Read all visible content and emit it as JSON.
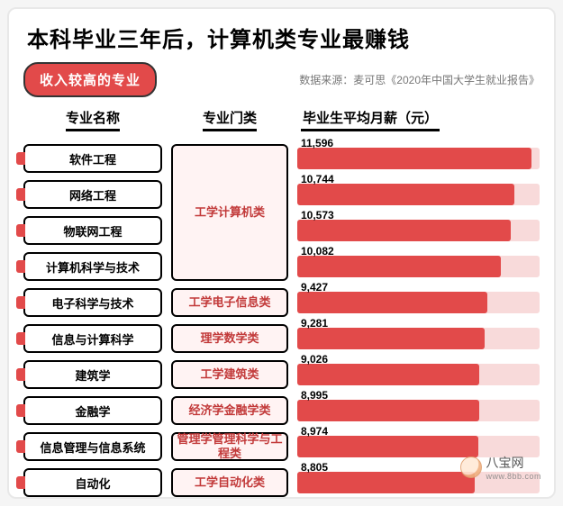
{
  "title": "本科毕业三年后，计算机类专业最赚钱",
  "badge": "收入较高的专业",
  "source_prefix": "数据来源：",
  "source": "麦可思《2020年中国大学生就业报告》",
  "columns": {
    "major": "专业名称",
    "category": "专业门类",
    "salary": "毕业生平均月薪（元）"
  },
  "chart": {
    "type": "bar",
    "bar_fill_color": "#e24a4a",
    "bar_track_color": "#f8dada",
    "max_value": 12000,
    "track_ratio": 1.0,
    "rows": [
      {
        "major": "软件工程",
        "category": "工学计算机类",
        "salary": 11596,
        "cat_span": 4
      },
      {
        "major": "网络工程",
        "category": "",
        "salary": 10744
      },
      {
        "major": "物联网工程",
        "category": "",
        "salary": 10573
      },
      {
        "major": "计算机科学与技术",
        "category": "",
        "salary": 10082
      },
      {
        "major": "电子科学与技术",
        "category": "工学电子信息类",
        "salary": 9427,
        "cat_span": 1
      },
      {
        "major": "信息与计算科学",
        "category": "理学数学类",
        "salary": 9281,
        "cat_span": 1
      },
      {
        "major": "建筑学",
        "category": "工学建筑类",
        "salary": 9026,
        "cat_span": 1
      },
      {
        "major": "金融学",
        "category": "经济学金融学类",
        "salary": 8995,
        "cat_span": 1
      },
      {
        "major": "信息管理与信息系统",
        "category": "管理学管理科学与工程类",
        "salary": 8974,
        "cat_span": 1
      },
      {
        "major": "自动化",
        "category": "工学自动化类",
        "salary": 8805,
        "cat_span": 1
      }
    ]
  },
  "watermark": {
    "name": "八宝网",
    "url": "www.8bb.com"
  },
  "style": {
    "title_fontsize": 24,
    "header_fontsize": 15,
    "cell_fontsize": 13,
    "value_fontsize": 12,
    "text_color": "#000000",
    "category_text_color": "#c23a3a",
    "category_bg": "#fff3f3",
    "accent": "#e24a4a",
    "card_bg": "#ffffff",
    "card_border": "#e8e8e8"
  }
}
